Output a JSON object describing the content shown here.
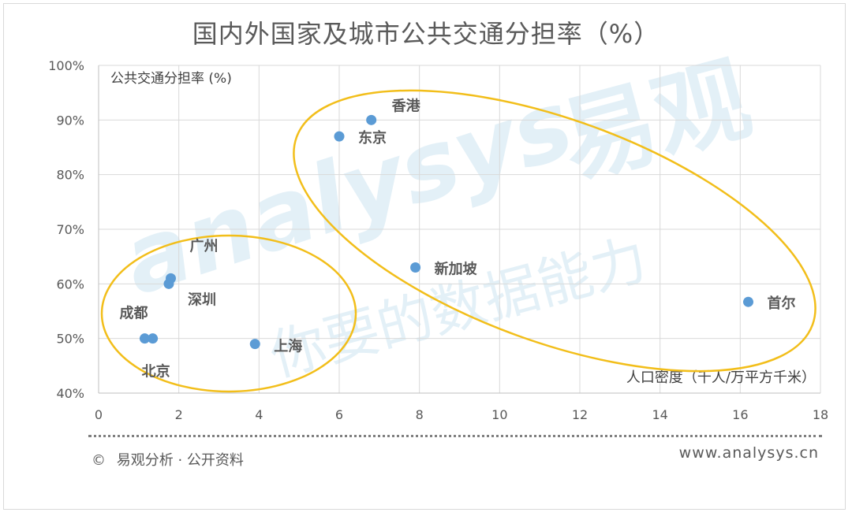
{
  "chart_data": {
    "type": "scatter",
    "title": "国内外国家及城市公共交通分担率（%）",
    "xlabel": "人口密度（千人/万平方千米）",
    "ylabel": "公共交通分担率 (%)",
    "xlim": [
      0,
      18
    ],
    "ylim": [
      40,
      100
    ],
    "x_ticks": [
      "0",
      "2",
      "4",
      "6",
      "8",
      "10",
      "12",
      "14",
      "16",
      "18"
    ],
    "y_ticks": [
      "40%",
      "50%",
      "60%",
      "70%",
      "80%",
      "90%",
      "100%"
    ],
    "grid": true,
    "point_color": "#5b9bd5",
    "ellipse_color": "#f2be1a",
    "points": [
      {
        "label": "香港",
        "x": 6.8,
        "y": 90
      },
      {
        "label": "东京",
        "x": 6.0,
        "y": 87
      },
      {
        "label": "新加坡",
        "x": 7.9,
        "y": 63
      },
      {
        "label": "首尔",
        "x": 16.2,
        "y": 56.7
      },
      {
        "label": "广州",
        "x": 1.8,
        "y": 61
      },
      {
        "label": "深圳",
        "x": 1.75,
        "y": 60
      },
      {
        "label": "成都",
        "x": 1.15,
        "y": 50
      },
      {
        "label": "北京",
        "x": 1.35,
        "y": 50
      },
      {
        "label": "上海",
        "x": 3.9,
        "y": 49
      }
    ]
  },
  "watermark": {
    "brand_latin": "analysys",
    "brand_cn": "易观",
    "slogan": "你要的数据能力"
  },
  "footer": {
    "copyright_symbol": "©",
    "source": "易观分析 · 公开资料",
    "website": "www.analysys.cn"
  }
}
